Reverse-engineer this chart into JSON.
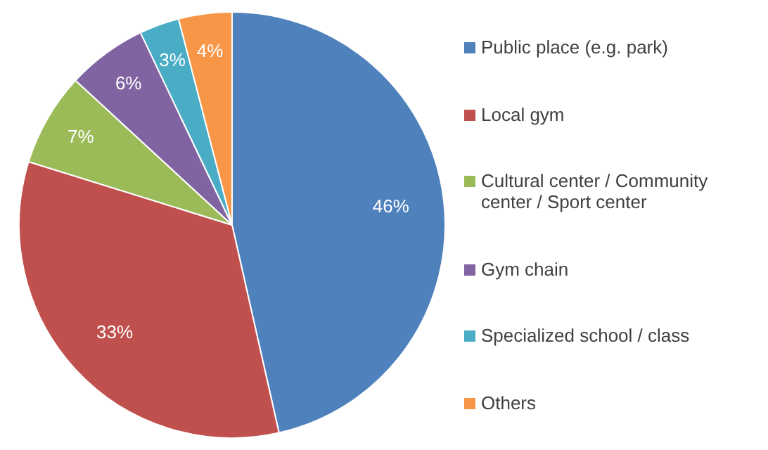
{
  "chart_data": {
    "type": "pie",
    "categories": [
      "Public place (e.g. park)",
      "Local gym",
      "Cultural center / Community center / Sport center",
      "Gym chain",
      "Specialized school / class",
      "Others"
    ],
    "values": [
      46,
      33,
      7,
      6,
      3,
      4
    ],
    "value_labels": [
      "46%",
      "33%",
      "7%",
      "6%",
      "3%",
      "4%"
    ],
    "colors": [
      "#4f81bd",
      "#c0504d",
      "#9bbb59",
      "#8064a2",
      "#4bacc6",
      "#f79646"
    ],
    "legend": "right"
  }
}
